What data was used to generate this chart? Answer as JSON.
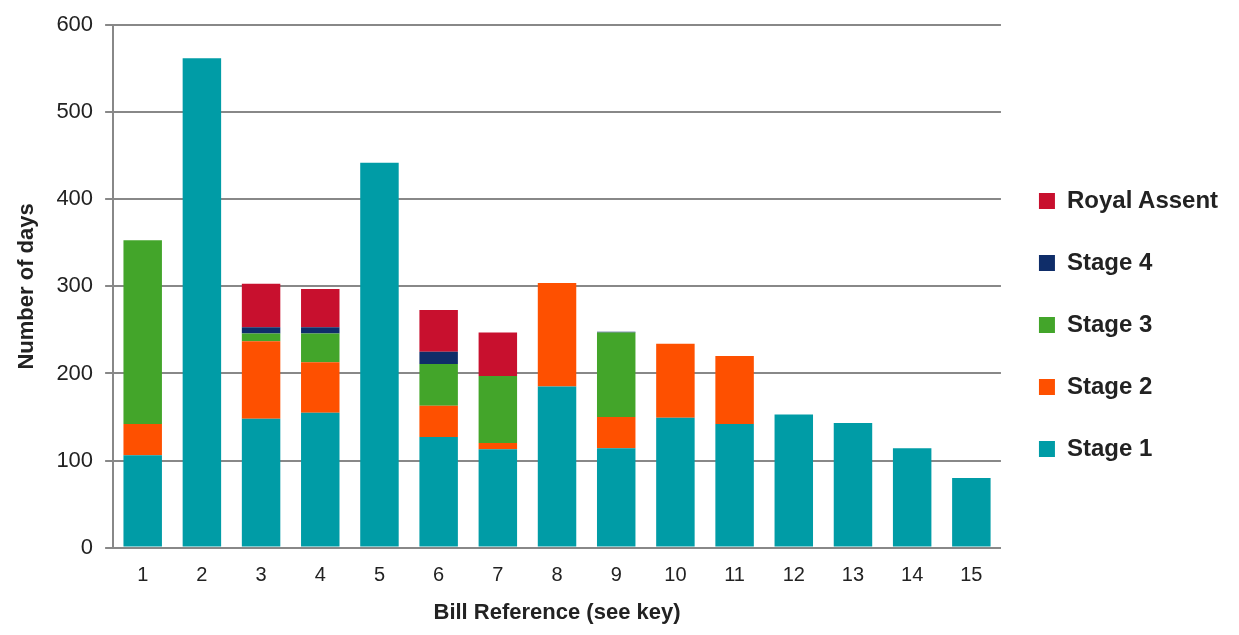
{
  "chart_data": {
    "type": "bar",
    "stacked": true,
    "xlabel": "Bill Reference (see key)",
    "ylabel": "Number of days",
    "categories": [
      "1",
      "2",
      "3",
      "4",
      "5",
      "6",
      "7",
      "8",
      "9",
      "10",
      "11",
      "12",
      "13",
      "14",
      "15"
    ],
    "ylim": [
      0,
      600
    ],
    "yticks": [
      0,
      100,
      200,
      300,
      400,
      500,
      600
    ],
    "grid": "y",
    "legend": "right",
    "series": [
      {
        "name": "Stage 1",
        "color": "#009ca6",
        "values": [
          106,
          562,
          148,
          155,
          442,
          127,
          113,
          185,
          114,
          149,
          142,
          153,
          143,
          114,
          80
        ]
      },
      {
        "name": "Stage 2",
        "color": "#fe5000",
        "values": [
          36,
          null,
          89,
          58,
          null,
          36,
          7,
          119,
          36,
          85,
          78,
          null,
          null,
          null,
          null
        ]
      },
      {
        "name": "Stage 3",
        "color": "#43a52a",
        "values": [
          211,
          null,
          9,
          33,
          null,
          48,
          77,
          null,
          97,
          null,
          null,
          null,
          null,
          null,
          null
        ]
      },
      {
        "name": "Stage 4",
        "color": "#0f2d69",
        "values": [
          null,
          null,
          7,
          7,
          null,
          14,
          null,
          null,
          1,
          null,
          null,
          null,
          null,
          null,
          null
        ]
      },
      {
        "name": "Royal Assent",
        "color": "#c8102e",
        "values": [
          null,
          null,
          50,
          44,
          null,
          48,
          50,
          null,
          null,
          null,
          null,
          null,
          null,
          null,
          null
        ]
      }
    ]
  }
}
